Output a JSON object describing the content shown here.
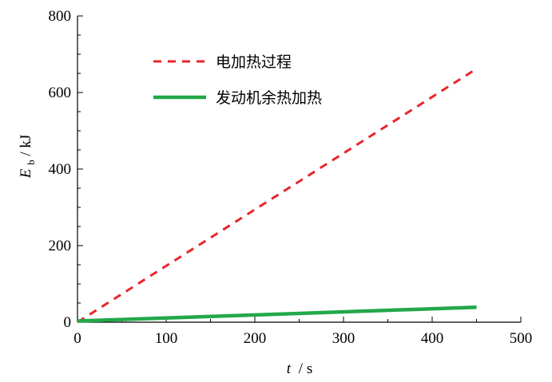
{
  "chart_data": {
    "type": "line",
    "xlabel_var": "t",
    "xlabel_unit": "/ s",
    "ylabel_var": "E",
    "ylabel_sub": "b",
    "ylabel_unit": " / kJ",
    "xlim": [
      0,
      500
    ],
    "ylim": [
      0,
      800
    ],
    "xticks": [
      0,
      100,
      200,
      300,
      400,
      500
    ],
    "yticks": [
      0,
      200,
      400,
      600,
      800
    ],
    "grid": false,
    "legend_position": "top-left",
    "series": [
      {
        "name": "电加热过程",
        "style": "dashed",
        "color": "#e8262b",
        "x": [
          0,
          450
        ],
        "y": [
          0,
          662
        ]
      },
      {
        "name": "发动机余热加热",
        "style": "solid",
        "color": "#22a84a",
        "x": [
          0,
          450
        ],
        "y": [
          3,
          39
        ]
      }
    ]
  }
}
